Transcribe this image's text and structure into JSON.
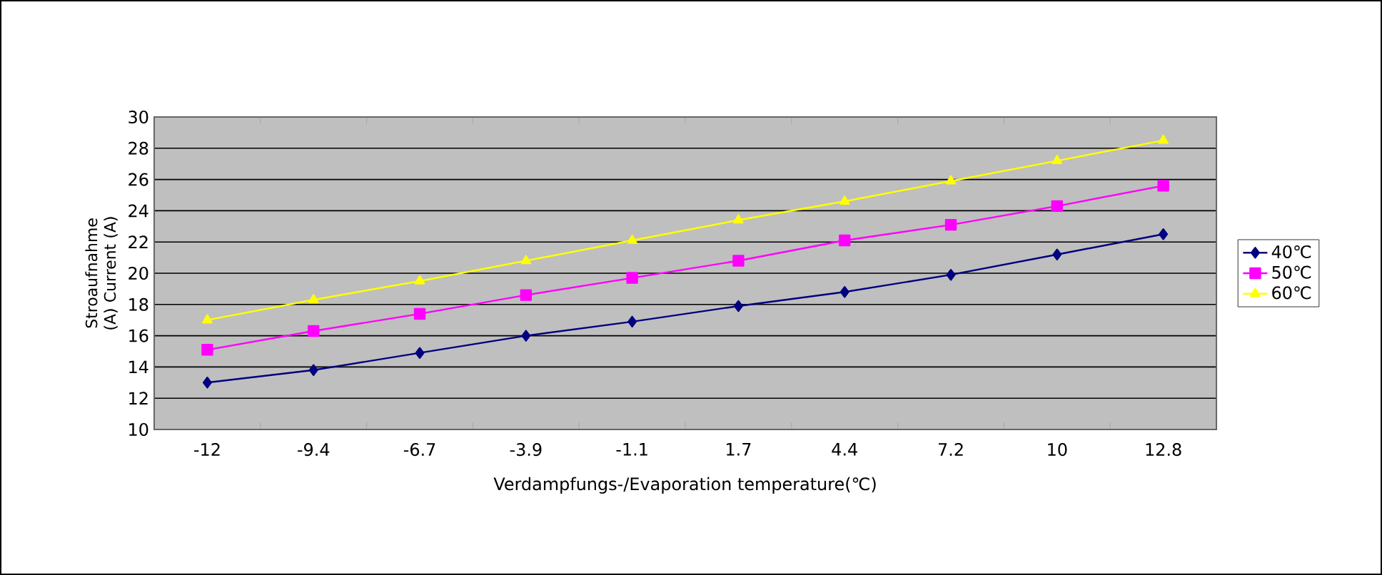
{
  "chart_data": {
    "type": "line",
    "xlabel": "Verdampfungs-/Evaporation temperature(℃)",
    "ylabel": "Stroaufnahme (A) Current (A)",
    "categories": [
      "-12",
      "-9.4",
      "-6.7",
      "-3.9",
      "-1.1",
      "1.7",
      "4.4",
      "7.2",
      "10",
      "12.8"
    ],
    "series": [
      {
        "name": "40℃",
        "color": "#000080",
        "marker": "diamond",
        "values": [
          13.0,
          13.8,
          14.9,
          16.0,
          16.9,
          17.9,
          18.8,
          19.9,
          21.2,
          22.5
        ]
      },
      {
        "name": "50℃",
        "color": "#ff00ff",
        "marker": "square",
        "values": [
          15.1,
          16.3,
          17.4,
          18.6,
          19.7,
          20.8,
          22.1,
          23.1,
          24.3,
          25.6
        ]
      },
      {
        "name": "60℃",
        "color": "#ffff00",
        "marker": "triangle",
        "values": [
          17.0,
          18.3,
          19.5,
          20.8,
          22.1,
          23.4,
          24.6,
          25.9,
          27.2,
          28.5
        ]
      }
    ],
    "ylim": [
      10,
      30
    ],
    "yticks": [
      10,
      12,
      14,
      16,
      18,
      20,
      22,
      24,
      26,
      28,
      30
    ],
    "grid": "y",
    "legend": "right",
    "line_style": "solid"
  }
}
